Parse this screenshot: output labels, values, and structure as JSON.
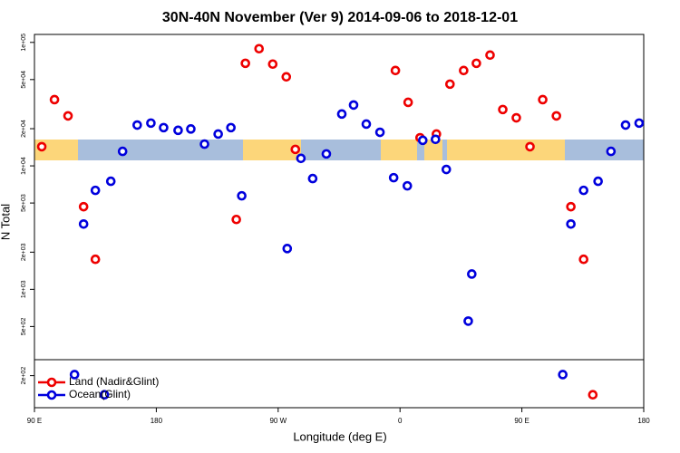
{
  "chart_data": {
    "type": "scatter",
    "title": "30N-40N November (Ver 9)   2014-09-06 to 2018-12-01",
    "x_label": "Longitude (deg E)",
    "y_label": "N Total",
    "log_y": true,
    "legend": "bottom-left",
    "xlim": [
      90,
      540
    ],
    "xticks": [
      {
        "value": 90,
        "label": "90 E"
      },
      180,
      {
        "value": 270,
        "label": "90 W"
      },
      {
        "value": 360,
        "label": "0"
      },
      {
        "value": 450,
        "label": "90 E"
      },
      {
        "value": 540,
        "label": "180"
      }
    ],
    "ylim": [
      110,
      116000
    ],
    "yticks": [
      {
        "value": 200,
        "label": "2e+02"
      },
      {
        "value": 500,
        "label": "5e+02"
      },
      {
        "value": 1000,
        "label": "1e+03"
      },
      {
        "value": 2000,
        "label": "2e+03"
      },
      {
        "value": 5000,
        "label": "5e+03"
      },
      {
        "value": 10000,
        "label": "1e+04"
      },
      {
        "value": 20000,
        "label": "2e+04"
      },
      {
        "value": 50000,
        "label": "5e+04"
      },
      {
        "value": 100000,
        "label": "1e+05"
      }
    ],
    "series": [
      {
        "name": "Land (Nadir&Glint)",
        "color": "#ee0000",
        "x": [
          95.4,
          104.8,
          114.8,
          126.3,
          135,
          239.1,
          245.8,
          255.9,
          266,
          276,
          282.7,
          356.6,
          366,
          374.8,
          386.9,
          396.9,
          407,
          416.4,
          426.5,
          435.9,
          445.9,
          456,
          465.4,
          475.5,
          486.2,
          495.6,
          502.4
        ],
        "values": [
          14300,
          34400,
          25400,
          4670,
          1750,
          3680,
          67700,
          88900,
          66700,
          52600,
          13600,
          59200,
          32700,
          16900,
          18100,
          45900,
          59200,
          67700,
          78900,
          28600,
          24500,
          14300,
          34400,
          25400,
          4670,
          1750,
          140
        ]
      },
      {
        "name": "Ocean(Glint)",
        "color": "#0000dd",
        "x": [
          119.6,
          126.3,
          135,
          141.7,
          146.4,
          155.1,
          165.9,
          176,
          185.4,
          196.1,
          205.5,
          215.6,
          225.7,
          235.1,
          243.1,
          276.7,
          286.8,
          295.5,
          305.6,
          317,
          325.7,
          335.1,
          345.2,
          355.3,
          365.4,
          376.8,
          386.2,
          394.2,
          410.4,
          413,
          480.2,
          486.2,
          495.6,
          506.3,
          515.8,
          526.6,
          536.6
        ],
        "values": [
          204,
          3380,
          6330,
          140,
          7500,
          13100,
          21400,
          22200,
          20400,
          19400,
          19900,
          15000,
          18100,
          20400,
          5720,
          2140,
          11500,
          7890,
          12500,
          26300,
          31100,
          21800,
          18700,
          8020,
          6890,
          16100,
          16400,
          9350,
          553,
          1330,
          204,
          3380,
          6330,
          7500,
          13100,
          21400,
          22200
        ]
      }
    ]
  }
}
